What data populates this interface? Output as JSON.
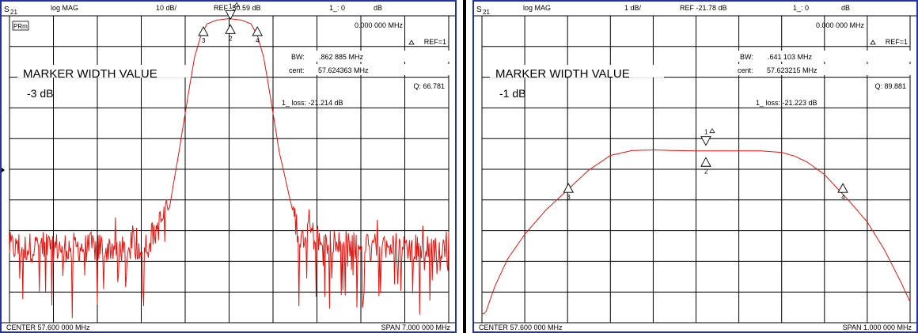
{
  "chart_data": [
    {
      "type": "line",
      "channel_main": "S",
      "channel_sub": "21",
      "format": "log MAG",
      "scale": "10 dB/",
      "ref": "REF -50.59 dB",
      "marker_readout": "1_: 0",
      "marker_unit": "dB",
      "marker_freq": "0.000 000 MHz",
      "ref_marker": "REF=1",
      "corner_label": "PRm",
      "heading": "MARKER WIDTH VALUE",
      "width_value": "-3 dB",
      "bw_label": "BW:",
      "bw_value": ".862 885 MHz",
      "cent_label": "cent:",
      "cent_value": "57.624363 MHz",
      "q_value": "Q: 66.781",
      "loss_value": "1_ loss: -21.214 dB",
      "center": "CENTER  57.600 000 MHz",
      "span": "SPAN    7.000 000 MHz",
      "xlim": [
        54.1,
        61.1
      ],
      "ylim": [
        -150.59,
        -50.59
      ],
      "grid": true,
      "series": [
        {
          "color": "#e8140e",
          "noisy_below": -114,
          "x": [
            54.1,
            55.0,
            55.6,
            56.0,
            56.3,
            56.65,
            56.8,
            56.95,
            57.05,
            57.15,
            57.25,
            57.4,
            57.6,
            57.8,
            57.95,
            58.05,
            58.15,
            58.25,
            58.4,
            58.6,
            58.75,
            58.85,
            58.95,
            59.05,
            59.2,
            59.4,
            60.0,
            61.1
          ],
          "y": [
            -126,
            -126,
            -126,
            -126,
            -125,
            -113,
            -95,
            -76,
            -64,
            -57,
            -53.2,
            -52.0,
            -51.5,
            -52.0,
            -53.2,
            -57,
            -64,
            -76,
            -95,
            -113,
            -124,
            -118,
            -122,
            -126,
            -124,
            -126,
            -126,
            -126
          ]
        }
      ],
      "markers": [
        {
          "label": "1",
          "x": 57.62,
          "y": -51.7,
          "style": "ref"
        },
        {
          "label": "2",
          "x": 57.62,
          "y": -53.5,
          "style": "up"
        },
        {
          "label": "3",
          "x": 57.19,
          "y": -54.2,
          "style": "up"
        },
        {
          "label": "4",
          "x": 58.05,
          "y": -54.2,
          "style": "up"
        }
      ]
    },
    {
      "type": "line",
      "channel_main": "S",
      "channel_sub": "21",
      "format": "log MAG",
      "scale": "1 dB/",
      "ref": "REF -21.78 dB",
      "marker_readout": "1_: 0",
      "marker_unit": "dB",
      "marker_freq": "0.000 000 MHz",
      "ref_marker": "REF=1",
      "heading": "MARKER WIDTH VALUE",
      "width_value": "-1 dB",
      "bw_label": "BW:",
      "bw_value": ".641 103 MHz",
      "cent_label": "cent:",
      "cent_value": "57.623215 MHz",
      "q_value": "Q: 89.881",
      "loss_value": "1_ loss: -21.223 dB",
      "center": "CENTER  57.600 000 MHz",
      "span": "SPAN    1.000 000 MHz",
      "xlim": [
        57.1,
        58.1
      ],
      "ylim": [
        -31.78,
        -21.78
      ],
      "grid": true,
      "series": [
        {
          "color": "#e8140e",
          "x": [
            57.1,
            57.11,
            57.13,
            57.16,
            57.2,
            57.25,
            57.3,
            57.35,
            57.4,
            57.45,
            57.5,
            57.55,
            57.6,
            57.65,
            57.7,
            57.75,
            57.8,
            57.83,
            57.86,
            57.9,
            57.93,
            57.96,
            58.0,
            58.04,
            58.08,
            58.1
          ],
          "y": [
            -31.72,
            -31.4,
            -30.6,
            -29.7,
            -28.9,
            -28.1,
            -27.45,
            -26.8,
            -26.33,
            -26.17,
            -26.15,
            -26.17,
            -26.18,
            -26.18,
            -26.18,
            -26.18,
            -26.23,
            -26.35,
            -26.55,
            -26.95,
            -27.4,
            -27.85,
            -28.5,
            -29.4,
            -30.5,
            -31.1
          ]
        }
      ],
      "markers": [
        {
          "label": "1",
          "x": 57.623,
          "y": -26.0,
          "style": "ref"
        },
        {
          "label": "2",
          "x": 57.623,
          "y": -26.4,
          "style": "up"
        },
        {
          "label": "3",
          "x": 57.302,
          "y": -27.25,
          "style": "up"
        },
        {
          "label": "4",
          "x": 57.943,
          "y": -27.25,
          "style": "up"
        }
      ]
    }
  ]
}
